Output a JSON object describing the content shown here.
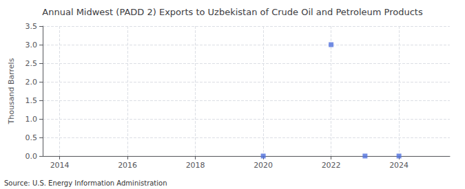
{
  "chart_data": {
    "type": "scatter",
    "title": "Annual Midwest (PADD 2) Exports to Uzbekistan of Crude Oil and Petroleum Products",
    "ylabel": "Thousand Barrels",
    "annotations": [
      "Source: U.S. Energy Information Administration"
    ],
    "x": [
      2020,
      2022,
      2023,
      2024
    ],
    "values": [
      0.0,
      3.0,
      0.0,
      0.0
    ],
    "marker": "square",
    "xlim": [
      2013.5,
      2025.5
    ],
    "xticks": [
      2014,
      2016,
      2018,
      2020,
      2022,
      2024
    ],
    "ylim": [
      0,
      3.5
    ],
    "yticks": [
      {
        "value": 0,
        "label": "0.0"
      },
      0.5,
      {
        "value": 1,
        "label": "1.0"
      },
      1.5,
      {
        "value": 2,
        "label": "2.0"
      },
      2.5,
      {
        "value": 3,
        "label": "3.0"
      },
      3.5
    ],
    "grid": true
  }
}
